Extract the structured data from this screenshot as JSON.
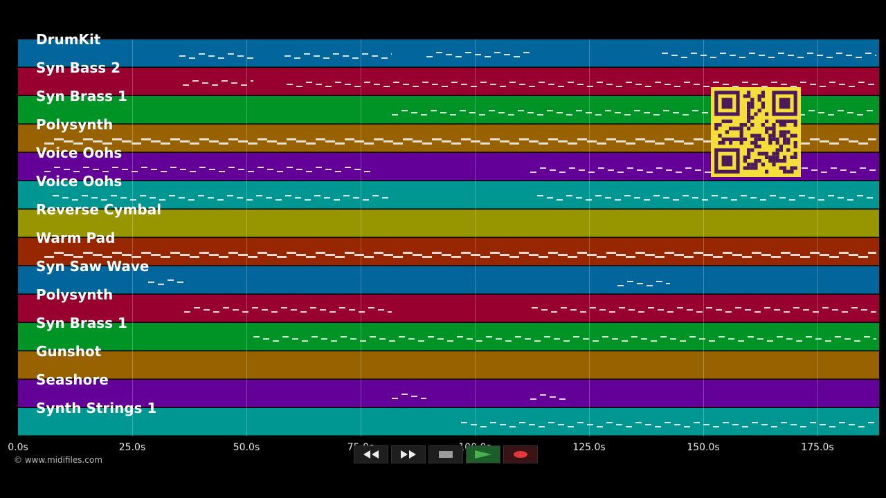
{
  "tracks": [
    {
      "name": "DrumKit",
      "color": "#02659c"
    },
    {
      "name": "Syn Bass 2",
      "color": "#97002f"
    },
    {
      "name": "Syn Brass 1",
      "color": "#009426"
    },
    {
      "name": "Polysynth",
      "color": "#986200"
    },
    {
      "name": "Voice Oohs",
      "color": "#620097"
    },
    {
      "name": "Voice Oohs",
      "color": "#009793"
    },
    {
      "name": "Reverse Cymbal",
      "color": "#979500"
    },
    {
      "name": "Warm Pad",
      "color": "#972700"
    },
    {
      "name": "Syn Saw Wave",
      "color": "#02659c"
    },
    {
      "name": "Polysynth",
      "color": "#97002f"
    },
    {
      "name": "Syn Brass 1",
      "color": "#009426"
    },
    {
      "name": "Gunshot",
      "color": "#986200"
    },
    {
      "name": "Seashore",
      "color": "#620097"
    },
    {
      "name": "Synth Strings 1",
      "color": "#009793"
    }
  ],
  "timeline": {
    "ticks": [
      "0.0s",
      "25.0s",
      "50.0s",
      "75.0s",
      "100.0s",
      "125.0s",
      "150.0s",
      "175.0s"
    ]
  },
  "copyright": "© www.midifiles.com",
  "controls": {
    "rewind": "rewind-icon",
    "fast_forward": "fast-forward-icon",
    "stop": "stop-icon",
    "play": "play-icon",
    "record": "record-icon"
  },
  "colors": {
    "play_green": "#4caf50",
    "record_red": "#e23a3a",
    "qr_yellow": "#f5dd3a",
    "qr_dark": "#4a1a5a"
  }
}
